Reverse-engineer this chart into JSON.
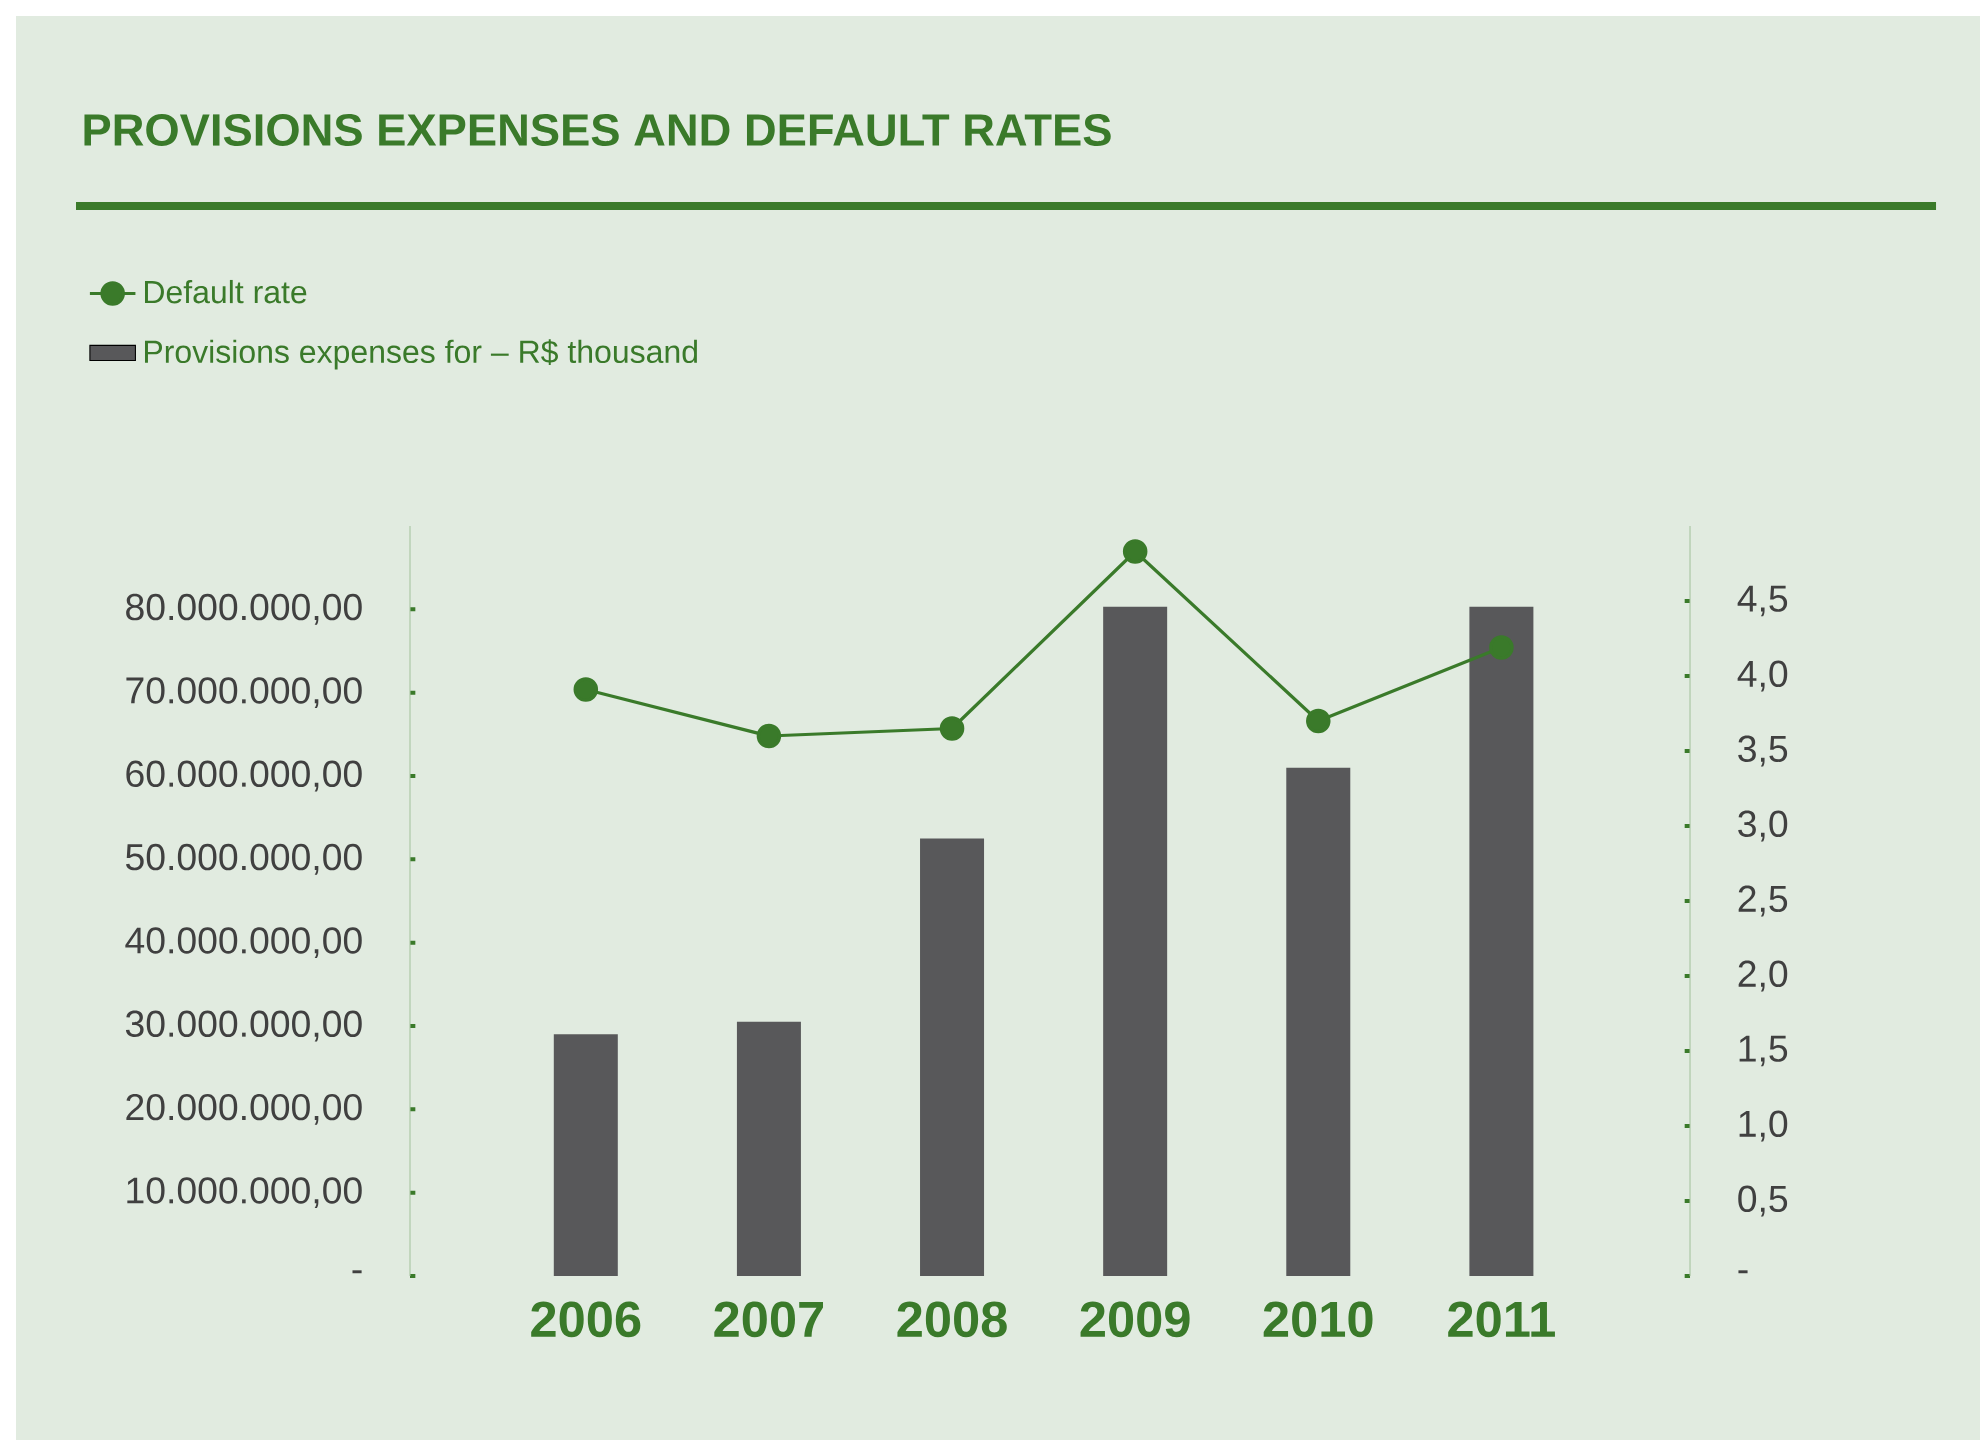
{
  "chart_data": {
    "type": "bar",
    "title": "PROVISIONS EXPENSES AND DEFAULT RATES",
    "categories": [
      "2006",
      "2007",
      "2008",
      "2009",
      "2010",
      "2011"
    ],
    "series": [
      {
        "name": "Default rate",
        "type": "line",
        "axis": "y2",
        "color": "#3a7a2a",
        "marker": "circle",
        "values": [
          3.91,
          3.6,
          3.65,
          4.83,
          3.7,
          4.19
        ]
      },
      {
        "name": "Provisions expenses for – R$ thousand",
        "color": "#58585a",
        "values": [
          29000000,
          30500000,
          52500000,
          80300000,
          61000000,
          80300000
        ]
      }
    ],
    "ylim": [
      0,
      90000000
    ],
    "yticks": [
      {
        "value": 0,
        "label": "-"
      },
      {
        "value": 10000000,
        "label": "10.000.000,00"
      },
      {
        "value": 20000000,
        "label": "20.000.000,00"
      },
      {
        "value": 30000000,
        "label": "30.000.000,00"
      },
      {
        "value": 40000000,
        "label": "40.000.000,00"
      },
      {
        "value": 50000000,
        "label": "50.000.000,00"
      },
      {
        "value": 60000000,
        "label": "60.000.000,00"
      },
      {
        "value": 70000000,
        "label": "70.000.000,00"
      },
      {
        "value": 80000000,
        "label": "80.000.000,00"
      }
    ],
    "y2lim": [
      0,
      5
    ],
    "y2ticks": [
      {
        "value": 0,
        "label": "-"
      },
      {
        "value": 0.5,
        "label": "0,5"
      },
      {
        "value": 1,
        "label": "1,0"
      },
      {
        "value": 1.5,
        "label": "1,5"
      },
      {
        "value": 2,
        "label": "2,0"
      },
      {
        "value": 2.5,
        "label": "2,5"
      },
      {
        "value": 3,
        "label": "3,0"
      },
      {
        "value": 3.5,
        "label": "3,5"
      },
      {
        "value": 4,
        "label": "4,0"
      },
      {
        "value": 4.5,
        "label": "4,5"
      }
    ],
    "grid": false,
    "legend": "top left"
  }
}
